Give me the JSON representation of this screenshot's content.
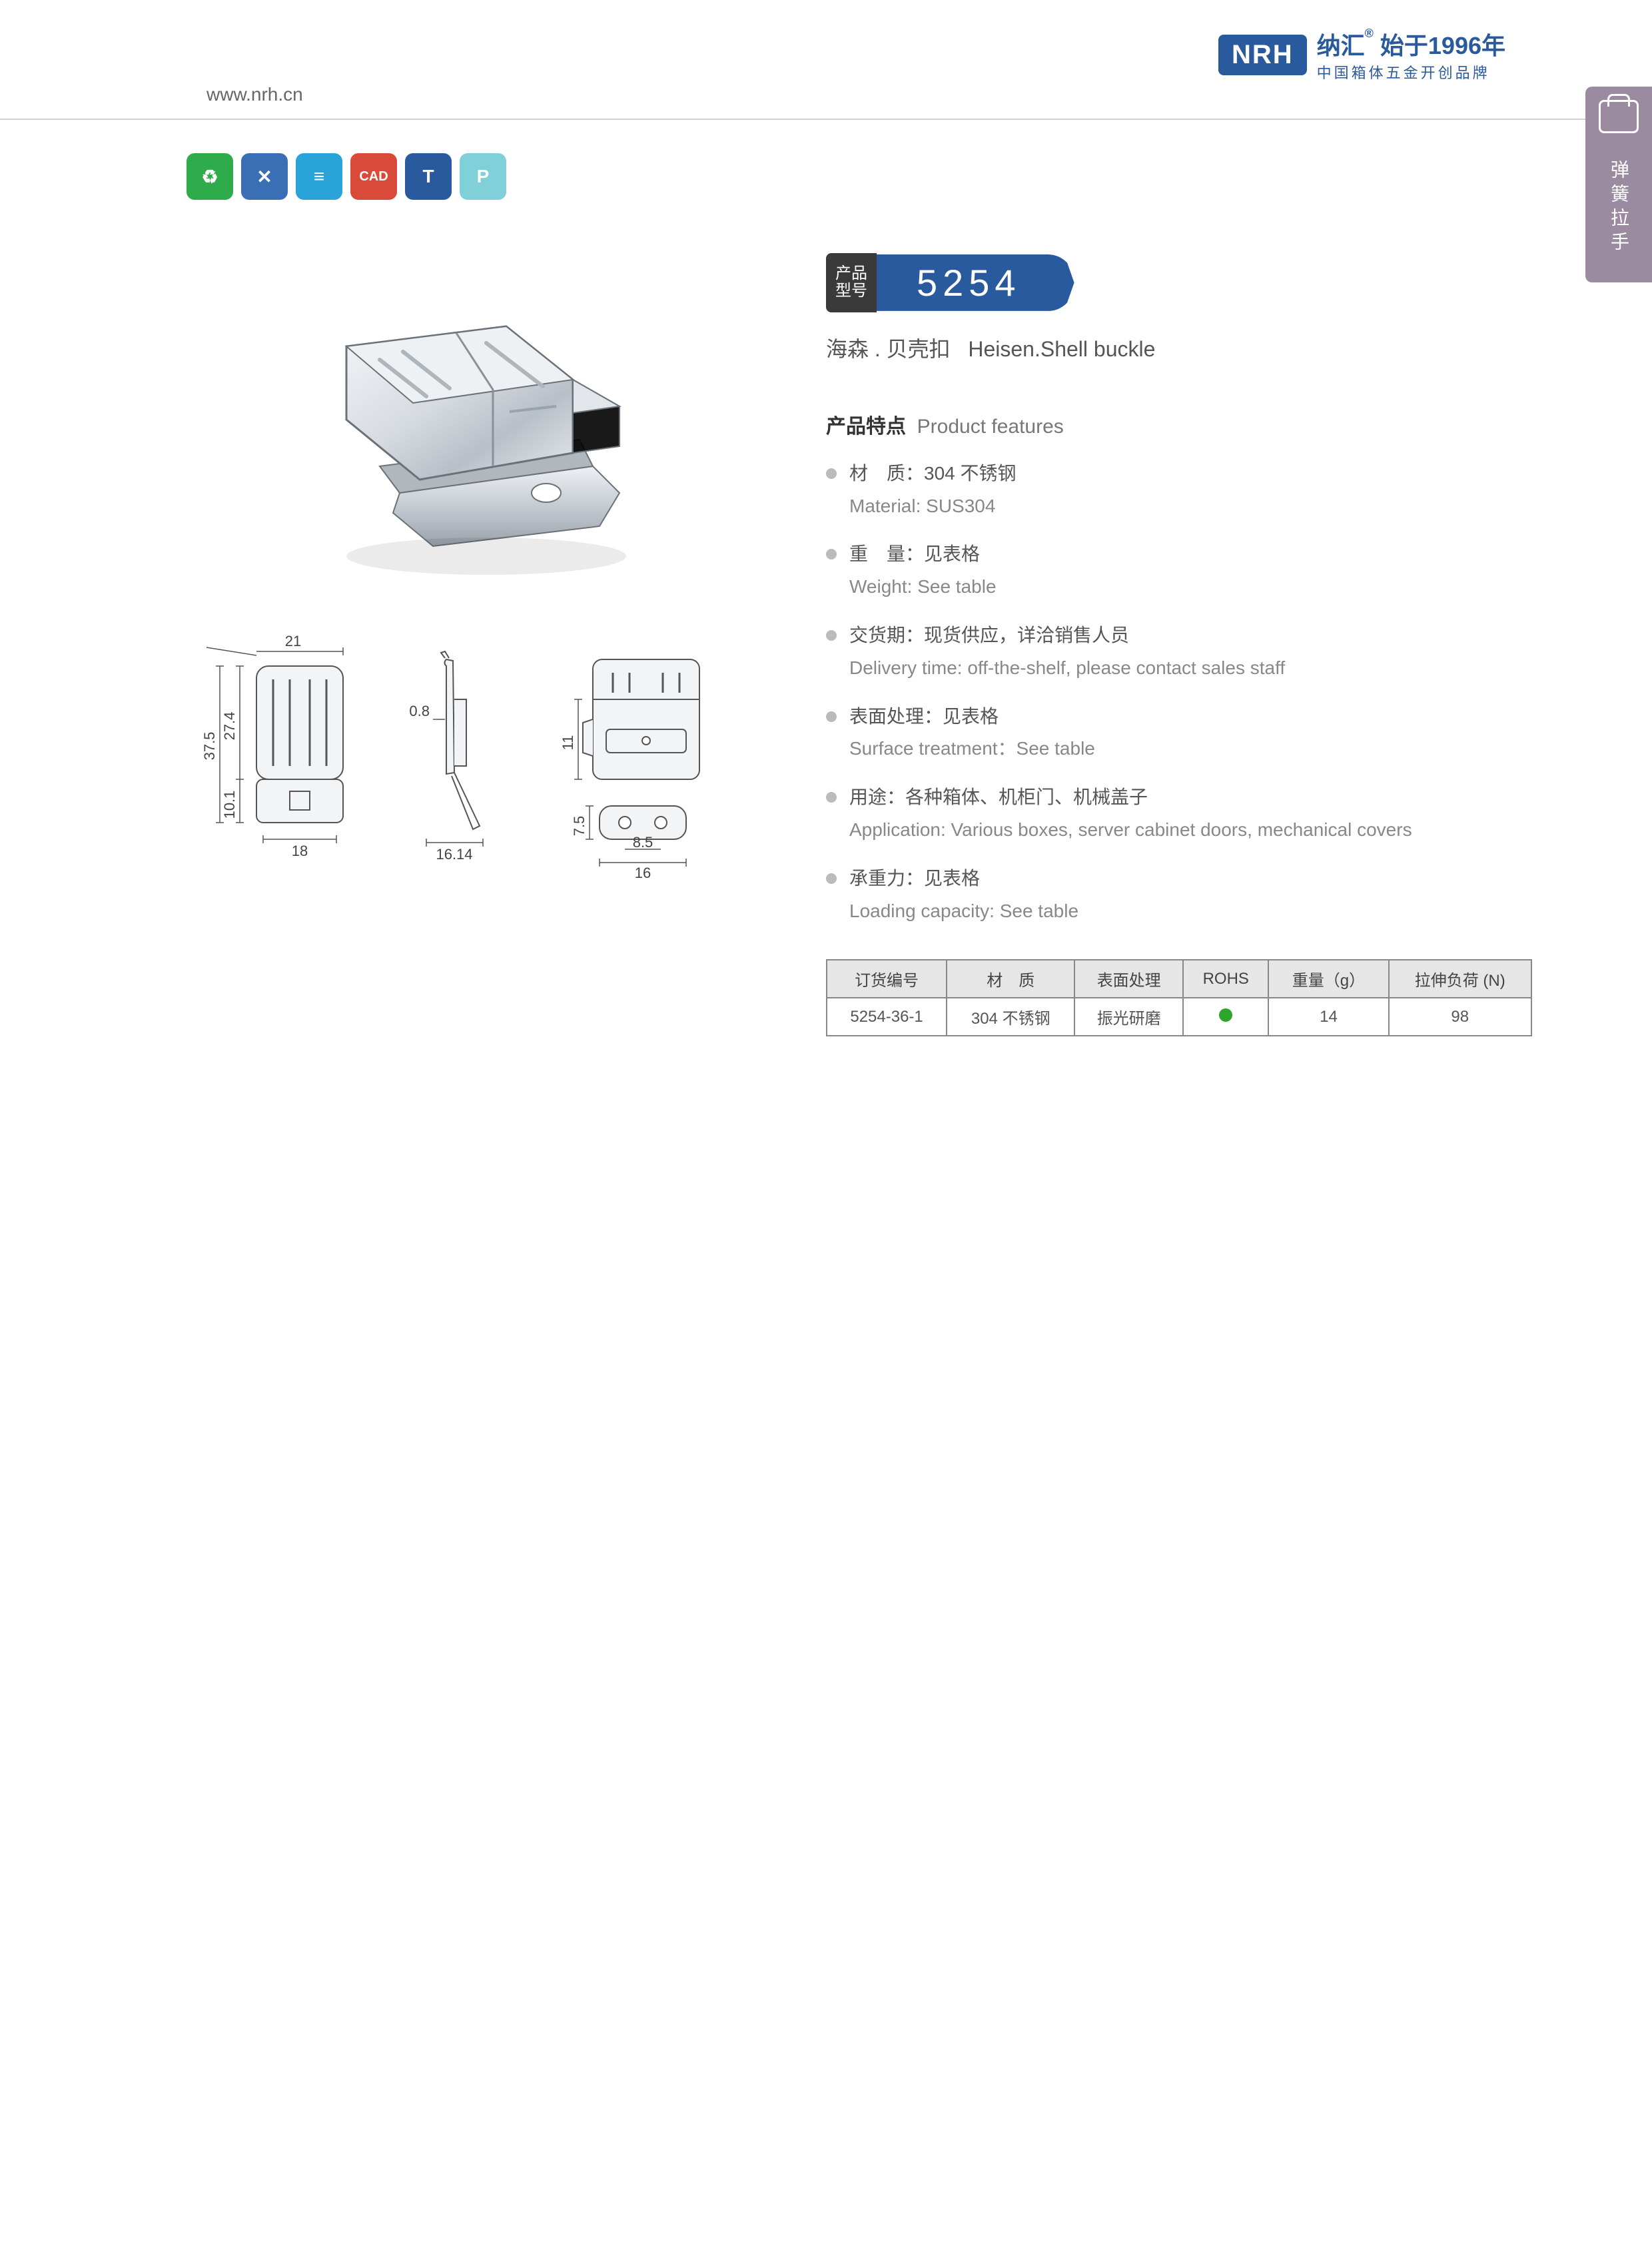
{
  "header": {
    "website": "www.nrh.cn",
    "logo_letters": "NRH",
    "brand_cn": "纳汇",
    "since": "始于1996年",
    "tagline": "中国箱体五金开创品牌"
  },
  "side_tab": {
    "label": "弹簧拉手"
  },
  "icon_row": [
    {
      "bg": "#2eab4a",
      "glyph": "♻"
    },
    {
      "bg": "#3a6fb5",
      "glyph": "✕"
    },
    {
      "bg": "#2aa3d8",
      "glyph": "≡"
    },
    {
      "bg": "#d94a3a",
      "glyph": "CAD"
    },
    {
      "bg": "#2a5a9e",
      "glyph": "T"
    },
    {
      "bg": "#7fd0d8",
      "glyph": "P"
    }
  ],
  "model": {
    "label_line1": "产品",
    "label_line2": "型号",
    "number": "5254",
    "subtitle_cn": "海森 . 贝壳扣",
    "subtitle_en": "Heisen.Shell buckle"
  },
  "features": {
    "title_cn": "产品特点",
    "title_en": "Product features",
    "items": [
      {
        "cn": "材　质：304 不锈钢",
        "en": "Material: SUS304"
      },
      {
        "cn": "重　量：见表格",
        "en": "Weight: See table"
      },
      {
        "cn": "交货期：现货供应，详洽销售人员",
        "en": "Delivery time: off-the-shelf, please contact sales staff"
      },
      {
        "cn": "表面处理：见表格",
        "en": "Surface treatment：See table"
      },
      {
        "cn": "用途：各种箱体、机柜门、机械盖子",
        "en": "Application: Various boxes, server cabinet doors, mechanical covers"
      },
      {
        "cn": "承重力：见表格",
        "en": "Loading capacity: See table"
      }
    ]
  },
  "spec_table": {
    "columns": [
      "订货编号",
      "材　质",
      "表面处理",
      "ROHS",
      "重量（g）",
      "拉伸负荷 (N)"
    ],
    "rows": [
      [
        "5254-36-1",
        "304 不锈钢",
        "振光研磨",
        "__ROHS__",
        "14",
        "98"
      ]
    ]
  },
  "dimensions": {
    "front": {
      "width_top": "21",
      "width_bottom": "18",
      "height_total": "37.5",
      "height_upper": "27.4",
      "height_lower": "10.1"
    },
    "side": {
      "thickness": "0.8",
      "depth": "16.14"
    },
    "top": {
      "height": "11"
    },
    "plate": {
      "width": "16",
      "hole_pitch": "8.5",
      "height": "7.5"
    }
  },
  "colors": {
    "brand_blue": "#2a5a9e",
    "badge_dark": "#3a3a3a",
    "side_tab": "#9a8ba0",
    "metal_light": "#e8ebee",
    "metal_mid": "#c5cbd1",
    "metal_dark": "#8a9299",
    "line": "#555555"
  }
}
